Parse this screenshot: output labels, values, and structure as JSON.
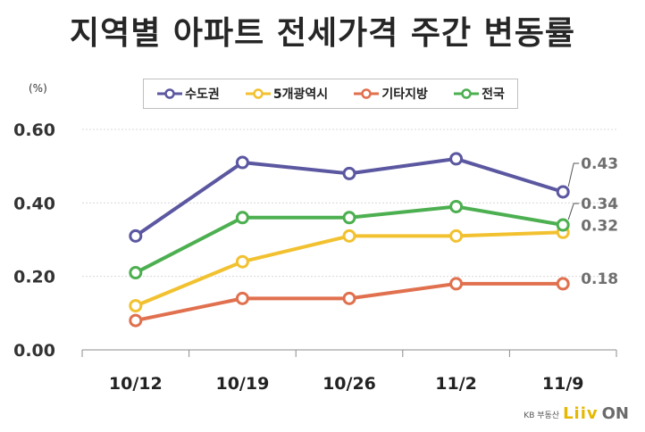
{
  "chart_data": {
    "type": "line",
    "title": "지역별 아파트 전세가격 주간 변동률",
    "unit": "(%)",
    "categories": [
      "10/12",
      "10/19",
      "10/26",
      "11/2",
      "11/9"
    ],
    "ylim": [
      0,
      0.6
    ],
    "yticks": [
      "0.00",
      "0.20",
      "0.40",
      "0.60"
    ],
    "grid": true,
    "legend_position": "top",
    "series": [
      {
        "name": "수도권",
        "color": "#5b57a0",
        "values": [
          0.31,
          0.51,
          0.48,
          0.52,
          0.43
        ],
        "end_label": "0.43"
      },
      {
        "name": "5개광역시",
        "color": "#f2c130",
        "values": [
          0.12,
          0.24,
          0.31,
          0.31,
          0.32
        ],
        "end_label": "0.32"
      },
      {
        "name": "기타지방",
        "color": "#e0704e",
        "values": [
          0.08,
          0.14,
          0.14,
          0.18,
          0.18
        ],
        "end_label": "0.18"
      },
      {
        "name": "전국",
        "color": "#4caf50",
        "values": [
          0.21,
          0.36,
          0.36,
          0.39,
          0.34
        ],
        "end_label": "0.34"
      }
    ]
  },
  "branding": {
    "kb": "KB 부동산",
    "liiv": "Liiv",
    "on": "ON"
  }
}
